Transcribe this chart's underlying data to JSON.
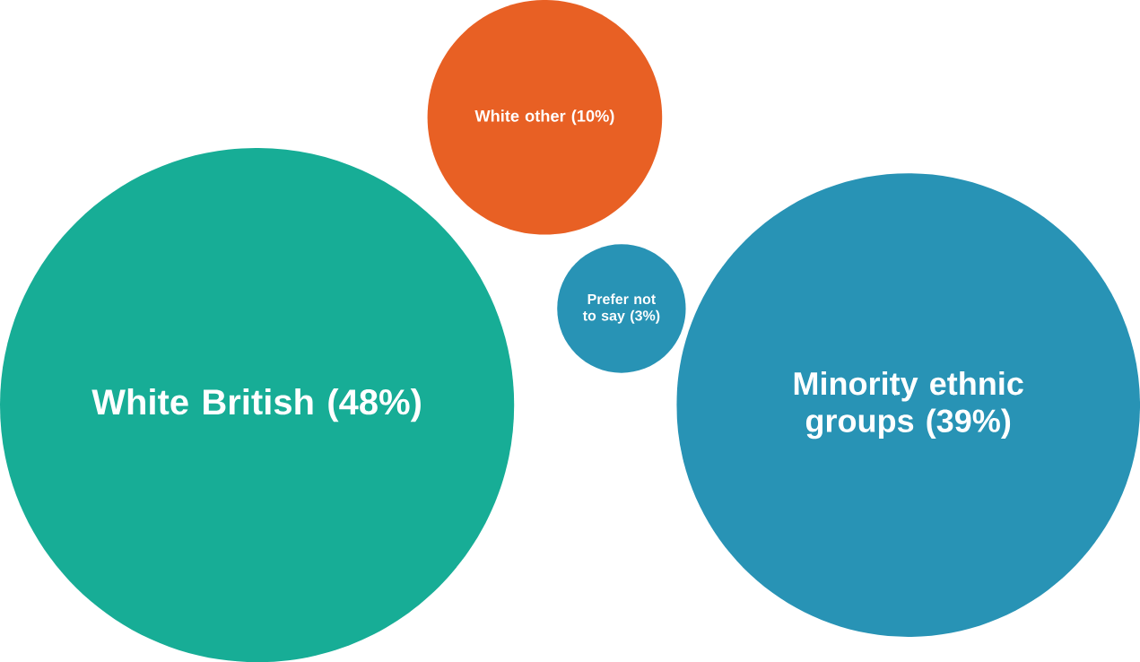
{
  "chart_data": {
    "type": "other",
    "categories": [
      "White British",
      "White other",
      "Prefer not to say",
      "Minority ethnic groups"
    ],
    "values": [
      48,
      10,
      3,
      39
    ],
    "value_labels": [
      "(48%)",
      "(10%)",
      "(3%)",
      "(39%)"
    ],
    "colors": [
      "#17ad96",
      "#e86024",
      "#2893b5",
      "#2893b5"
    ]
  }
}
